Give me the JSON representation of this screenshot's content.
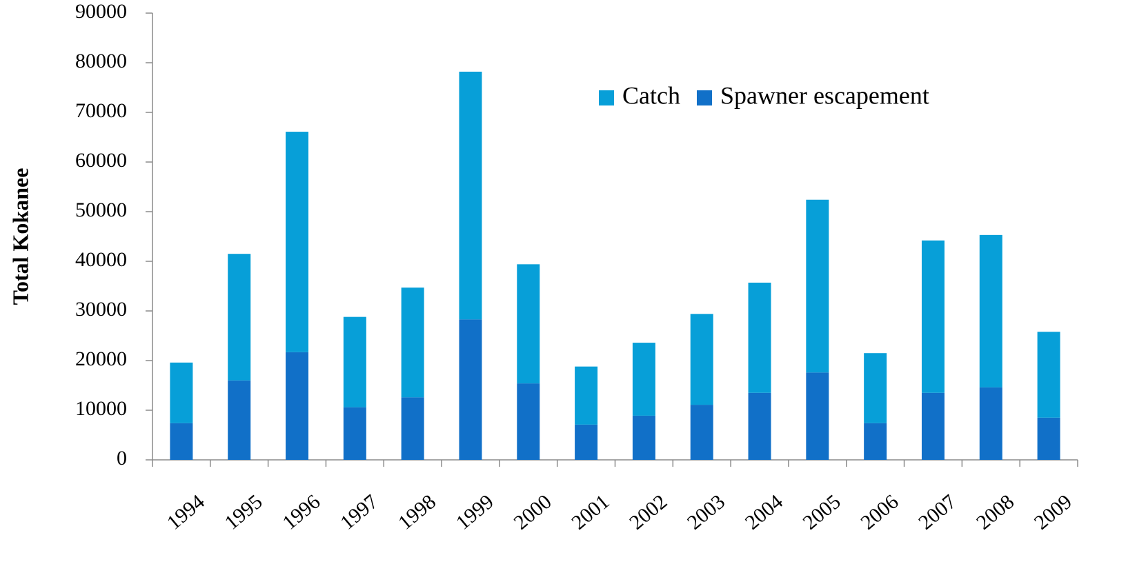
{
  "chart_data": {
    "type": "stacked_bar",
    "y_label": "Total Kokanee",
    "categories": [
      "1994",
      "1995",
      "1996",
      "1997",
      "1998",
      "1999",
      "2000",
      "2001",
      "2002",
      "2003",
      "2004",
      "2005",
      "2006",
      "2007",
      "2008",
      "2009"
    ],
    "series": [
      {
        "name": "Catch",
        "color": "#079fd8",
        "values": [
          12200,
          25500,
          44400,
          18200,
          22100,
          49900,
          24000,
          11700,
          14700,
          18300,
          22200,
          34800,
          14100,
          30700,
          30700,
          17300
        ]
      },
      {
        "name": "Spawner escapement",
        "color": "#1170c8",
        "values": [
          7400,
          16000,
          21700,
          10600,
          12600,
          28300,
          15400,
          7100,
          8900,
          11100,
          13500,
          17600,
          7400,
          13500,
          14600,
          8500
        ]
      }
    ],
    "ylim": [
      0,
      90000
    ],
    "yticks": [
      0,
      10000,
      20000,
      30000,
      40000,
      50000,
      60000,
      70000,
      80000,
      90000
    ],
    "legend": "top-right"
  }
}
